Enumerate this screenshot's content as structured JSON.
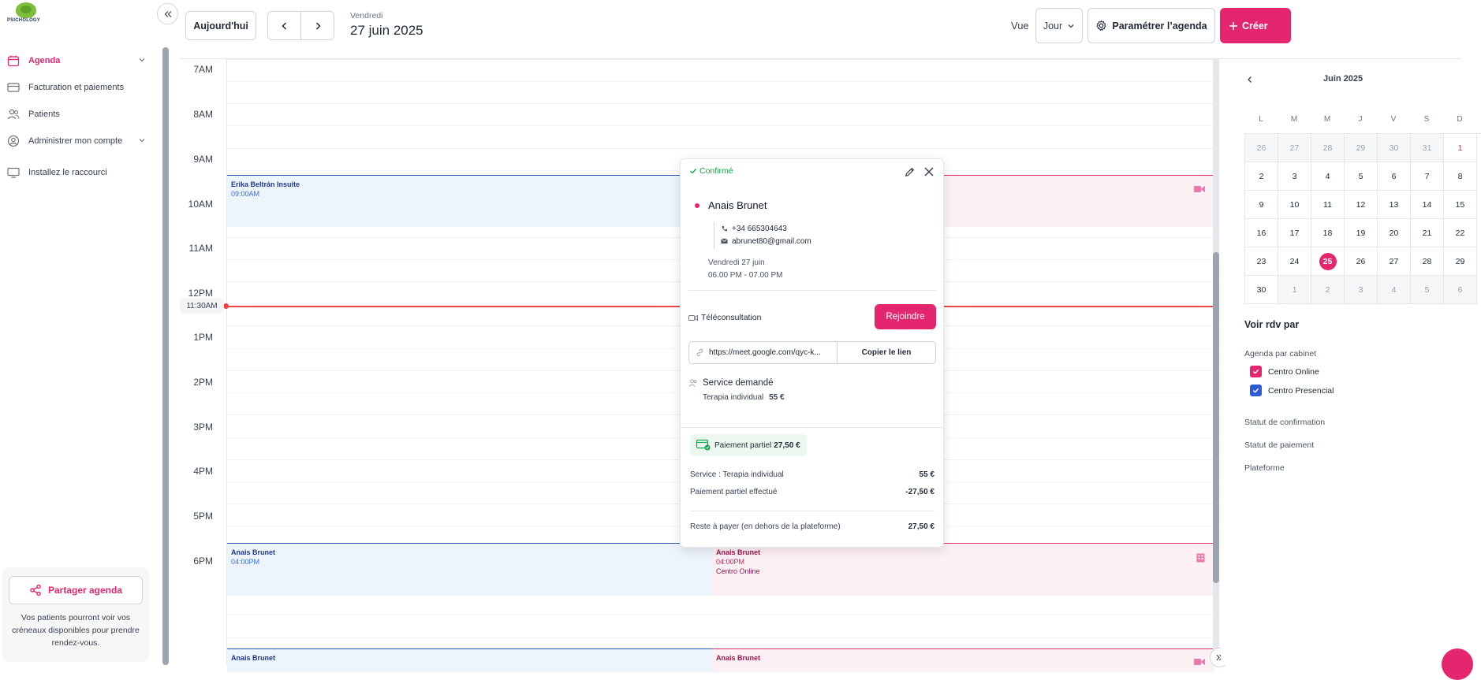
{
  "sidebar": {
    "logo_text": "PSICHOLOGY",
    "items": [
      {
        "label": "Agenda",
        "icon": "calendar-icon",
        "active": true
      },
      {
        "label": "Facturation et paiements",
        "icon": "credit-card-icon"
      },
      {
        "label": "Patients",
        "icon": "users-icon"
      },
      {
        "label": "Administrer mon compte",
        "icon": "user-circle-icon"
      },
      {
        "label": "Installez le raccourci",
        "icon": "monitor-icon"
      }
    ],
    "share_label": "Partager agenda",
    "share_desc": "Vos patients pourront voir vos créneaux disponibles pour prendre rendez-vous."
  },
  "topbar": {
    "today_label": "Aujourd'hui",
    "day_name": "Vendredi",
    "date": "27 juin 2025",
    "view_label": "Vue",
    "view_value": "Jour",
    "settings_label": "Paramétrer l’agenda",
    "create_label": "Créer"
  },
  "calendar": {
    "hours": [
      "7AM",
      "8AM",
      "9AM",
      "10AM",
      "11AM",
      "12PM",
      "1PM",
      "2PM",
      "3PM",
      "4PM",
      "5PM",
      "6PM"
    ],
    "now_label": "11:30AM",
    "events": {
      "e1": {
        "name": "Erika Beltrán Insuite",
        "time": "09:00AM"
      },
      "e2": {
        "name": "Anais Brunet",
        "time": "04:00PM"
      },
      "e3": {
        "name": "Anais Brunet",
        "time": "04:00PM",
        "place": "Centro Online"
      },
      "e4": {
        "name": "Anais Brunet"
      },
      "e5": {
        "name": "Anais Brunet"
      }
    }
  },
  "popup": {
    "status": "Confirmé",
    "patient": "Anais Brunet",
    "phone": "+34 665304643",
    "email": "abrunet80@gmail.com",
    "day": "Vendredi 27 juin",
    "time": "06.00 PM - 07.00 PM",
    "modality": "Téléconsultation",
    "join_label": "Rejoindre",
    "url": "https://meet.google.com/qyc-k...",
    "copy_label": "Copier le lien",
    "service_title": "Service demandé",
    "service_name": "Terapia individual",
    "service_price": "55 €",
    "payment_badge": "Paiement partiel",
    "payment_badge_amount": "27,50 €",
    "rows": [
      {
        "label": "Service : Terapia individual",
        "value": "55 €"
      },
      {
        "label": "Paiement partiel effectué",
        "value": "-27,50 €"
      }
    ],
    "remaining_label": "Reste à payer (en dehors de la plateforme)",
    "remaining_value": "27,50 €"
  },
  "right_panel": {
    "month": "Juin 2025",
    "dow": [
      "L",
      "M",
      "M",
      "J",
      "V",
      "S",
      "D"
    ],
    "weeks": [
      [
        "26",
        "27",
        "28",
        "29",
        "30",
        "31",
        "1"
      ],
      [
        "2",
        "3",
        "4",
        "5",
        "6",
        "7",
        "8"
      ],
      [
        "9",
        "10",
        "11",
        "12",
        "13",
        "14",
        "15"
      ],
      [
        "16",
        "17",
        "18",
        "19",
        "20",
        "21",
        "22"
      ],
      [
        "23",
        "24",
        "25",
        "26",
        "27",
        "28",
        "29"
      ],
      [
        "30",
        "1",
        "2",
        "3",
        "4",
        "5",
        "6"
      ]
    ],
    "voir_label": "Voir rdv par",
    "cabinet_label": "Agenda par cabinet",
    "cabinets": [
      {
        "label": "Centro Online",
        "color": "#e4266f"
      },
      {
        "label": "Centro Presencial",
        "color": "#2b5bd7"
      }
    ],
    "filters": [
      "Statut de confirmation",
      "Statut de paiement",
      "Plateforme"
    ]
  },
  "colors": {
    "accent": "#e4266f",
    "success": "#16a34a",
    "now": "#ef4444"
  }
}
